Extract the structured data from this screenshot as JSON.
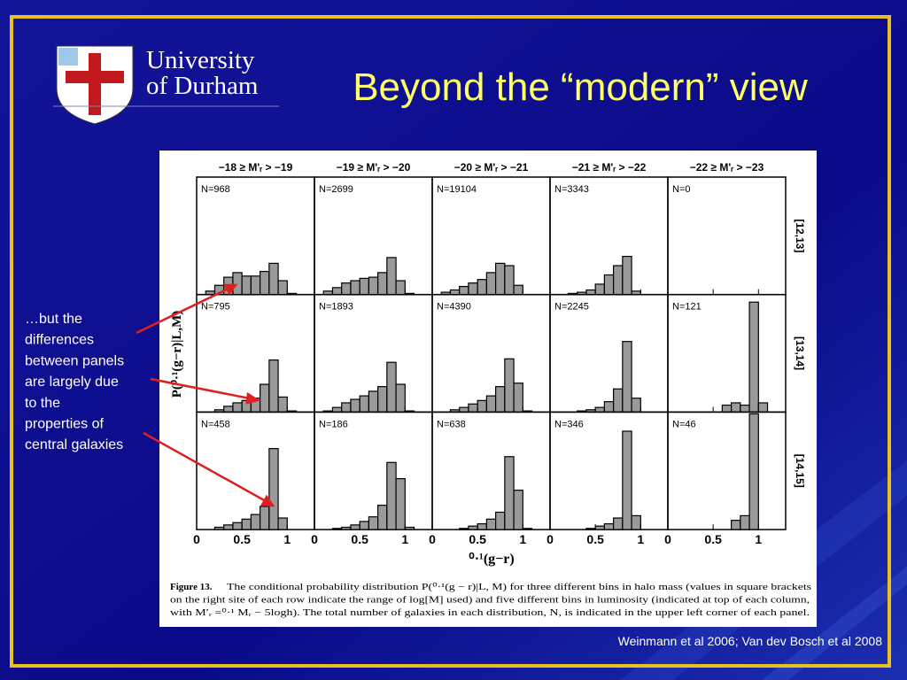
{
  "header": {
    "logo_line1": "University",
    "logo_line2": "of Durham",
    "title": "Beyond the “modern” view"
  },
  "bullet": [
    "…but the",
    "differences",
    "between panels",
    "are largely due",
    "to the",
    "properties of",
    "central galaxies"
  ],
  "figure": {
    "column_labels": [
      "−18 ≥ M'ᵣ > −19",
      "−19 ≥ M'ᵣ > −20",
      "−20 ≥ M'ᵣ > −21",
      "−21 ≥ M'ᵣ > −22",
      "−22 ≥ M'ᵣ > −23"
    ],
    "row_labels": [
      "[12,13]",
      "[13,14]",
      "[14,15]"
    ],
    "ylabel": "P(⁰·¹(g−r)|L,M)",
    "xlabel": "⁰·¹(g−r)",
    "xlim": [
      0,
      1.3
    ],
    "xticks": [
      0,
      0.5,
      1
    ],
    "ylim": [
      0,
      10
    ],
    "caption_label": "Figure 13.",
    "caption": [
      "The conditional probability distribution P(⁰·¹(g − r)|L, M) for three different bins in halo mass (values in square brackets",
      "on the right site of each row indicate the range of log[M] used) and five different bins in luminosity (indicated at top of each column,",
      "with M′ᵣ =⁰·¹ Mᵣ − 5logh). The total number of galaxies in each distribution, N, is indicated in the upper left corner of each panel."
    ]
  },
  "chart_data": [
    {
      "type": "histogram",
      "label": "N=968",
      "bins": [
        0,
        0.1,
        0.2,
        0.3,
        0.4,
        0.5,
        0.6,
        0.7,
        0.8,
        0.9,
        1,
        1.1,
        1.2
      ],
      "values": [
        0,
        0.3,
        0.8,
        1.5,
        1.9,
        1.6,
        1.6,
        2.0,
        2.7,
        1.2,
        0.1,
        0
      ]
    },
    {
      "type": "histogram",
      "label": "N=2699",
      "bins": [
        0,
        0.1,
        0.2,
        0.3,
        0.4,
        0.5,
        0.6,
        0.7,
        0.8,
        0.9,
        1,
        1.1,
        1.2
      ],
      "values": [
        0,
        0.3,
        0.6,
        1.0,
        1.2,
        1.4,
        1.5,
        1.9,
        3.2,
        1.2,
        0.1,
        0
      ]
    },
    {
      "type": "histogram",
      "label": "N=19104",
      "bins": [
        0,
        0.1,
        0.2,
        0.3,
        0.4,
        0.5,
        0.6,
        0.7,
        0.8,
        0.9,
        1,
        1.1,
        1.2
      ],
      "values": [
        0,
        0.2,
        0.4,
        0.7,
        1.0,
        1.3,
        1.9,
        2.7,
        2.5,
        0.8,
        0,
        0
      ]
    },
    {
      "type": "histogram",
      "label": "N=3343",
      "bins": [
        0,
        0.1,
        0.2,
        0.3,
        0.4,
        0.5,
        0.6,
        0.7,
        0.8,
        0.9,
        1,
        1.1,
        1.2
      ],
      "values": [
        0,
        0,
        0.1,
        0.2,
        0.4,
        0.9,
        1.7,
        2.5,
        3.3,
        0.3,
        0,
        0
      ]
    },
    {
      "type": "histogram",
      "label": "N=0",
      "bins": [
        0,
        0.1,
        0.2,
        0.3,
        0.4,
        0.5,
        0.6,
        0.7,
        0.8,
        0.9,
        1,
        1.1,
        1.2
      ],
      "values": [
        0,
        0,
        0,
        0,
        0,
        0,
        0,
        0,
        0,
        0,
        0,
        0
      ]
    },
    {
      "type": "histogram",
      "label": "N=795",
      "bins": [
        0,
        0.1,
        0.2,
        0.3,
        0.4,
        0.5,
        0.6,
        0.7,
        0.8,
        0.9,
        1,
        1.1,
        1.2
      ],
      "values": [
        0,
        0,
        0.2,
        0.5,
        0.8,
        1.0,
        1.2,
        2.4,
        4.5,
        1.3,
        0.1,
        0
      ]
    },
    {
      "type": "histogram",
      "label": "N=1893",
      "bins": [
        0,
        0.1,
        0.2,
        0.3,
        0.4,
        0.5,
        0.6,
        0.7,
        0.8,
        0.9,
        1,
        1.1,
        1.2
      ],
      "values": [
        0,
        0.1,
        0.4,
        0.8,
        1.1,
        1.4,
        1.8,
        2.2,
        4.3,
        2.4,
        0.1,
        0
      ]
    },
    {
      "type": "histogram",
      "label": "N=4390",
      "bins": [
        0,
        0.1,
        0.2,
        0.3,
        0.4,
        0.5,
        0.6,
        0.7,
        0.8,
        0.9,
        1,
        1.1,
        1.2
      ],
      "values": [
        0,
        0,
        0.2,
        0.4,
        0.7,
        1.0,
        1.4,
        2.2,
        4.6,
        2.5,
        0.1,
        0
      ]
    },
    {
      "type": "histogram",
      "label": "N=2245",
      "bins": [
        0,
        0.1,
        0.2,
        0.3,
        0.4,
        0.5,
        0.6,
        0.7,
        0.8,
        0.9,
        1,
        1.1,
        1.2
      ],
      "values": [
        0,
        0,
        0,
        0.1,
        0.2,
        0.4,
        0.9,
        2.0,
        6.1,
        1.2,
        0,
        0
      ]
    },
    {
      "type": "histogram",
      "label": "N=121",
      "bins": [
        0,
        0.1,
        0.2,
        0.3,
        0.4,
        0.5,
        0.6,
        0.7,
        0.8,
        0.9,
        1,
        1.1,
        1.2
      ],
      "values": [
        0,
        0,
        0,
        0,
        0,
        0,
        0.6,
        0.8,
        0.6,
        9.5,
        0.8,
        0
      ]
    },
    {
      "type": "histogram",
      "label": "N=458",
      "bins": [
        0,
        0.1,
        0.2,
        0.3,
        0.4,
        0.5,
        0.6,
        0.7,
        0.8,
        0.9,
        1,
        1.1,
        1.2
      ],
      "values": [
        0,
        0,
        0.2,
        0.4,
        0.6,
        0.9,
        1.3,
        2.0,
        7.0,
        1.0,
        0,
        0
      ]
    },
    {
      "type": "histogram",
      "label": "N=186",
      "bins": [
        0,
        0.1,
        0.2,
        0.3,
        0.4,
        0.5,
        0.6,
        0.7,
        0.8,
        0.9,
        1,
        1.1,
        1.2
      ],
      "values": [
        0,
        0,
        0.1,
        0.2,
        0.4,
        0.7,
        1.1,
        2.1,
        5.8,
        4.4,
        0.2,
        0
      ]
    },
    {
      "type": "histogram",
      "label": "N=638",
      "bins": [
        0,
        0.1,
        0.2,
        0.3,
        0.4,
        0.5,
        0.6,
        0.7,
        0.8,
        0.9,
        1,
        1.1,
        1.2
      ],
      "values": [
        0,
        0,
        0,
        0.1,
        0.3,
        0.5,
        0.9,
        1.5,
        6.3,
        3.4,
        0.1,
        0
      ]
    },
    {
      "type": "histogram",
      "label": "N=346",
      "bins": [
        0,
        0.1,
        0.2,
        0.3,
        0.4,
        0.5,
        0.6,
        0.7,
        0.8,
        0.9,
        1,
        1.1,
        1.2
      ],
      "values": [
        0,
        0,
        0,
        0,
        0.1,
        0.3,
        0.5,
        1.0,
        8.5,
        1.2,
        0,
        0
      ]
    },
    {
      "type": "histogram",
      "label": "N=46",
      "bins": [
        0,
        0.1,
        0.2,
        0.3,
        0.4,
        0.5,
        0.6,
        0.7,
        0.8,
        0.9,
        1,
        1.1,
        1.2
      ],
      "values": [
        0,
        0,
        0,
        0,
        0,
        0,
        0,
        0.8,
        1.2,
        10,
        0,
        0
      ]
    }
  ],
  "citation": "Weinmann et al 2006; Van dev Bosch et al 2008"
}
